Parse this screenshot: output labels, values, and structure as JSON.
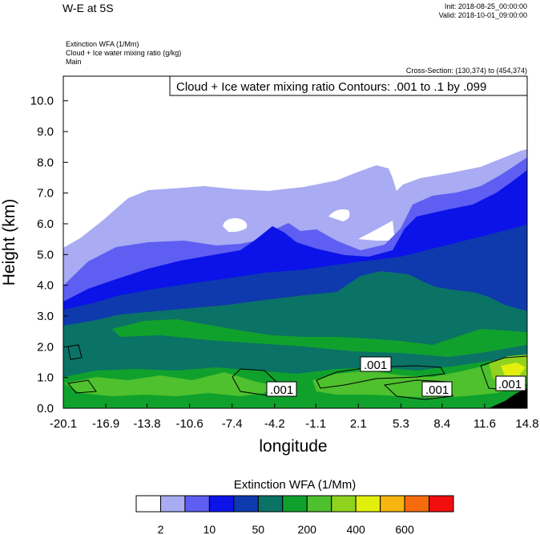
{
  "header": {
    "title": "W-E at 5S",
    "init": "Init: 2018-08-25_00:00:00",
    "valid": "Valid: 2018-10-01_09:00:00",
    "field1": "Extinction WFA   (1/Mm)",
    "field2": "Cloud + Ice water mixing ratio   (g/kg)",
    "field3": "Main",
    "cross_section": "Cross-Section: (130,374) to (454,374)"
  },
  "contour_info": "Cloud + Ice water mixing ratio Contours: .001 to .1 by .099",
  "contour_labels": [
    ".001",
    ".001",
    ".001",
    ".001"
  ],
  "colorbar": {
    "title": "Extinction WFA  (1/Mm)",
    "colors": [
      "#ffffff",
      "#a9abf3",
      "#5e5ef2",
      "#0b13e8",
      "#0e3aad",
      "#0b7266",
      "#10a12c",
      "#4fc02e",
      "#8fd31f",
      "#e2ef0c",
      "#f7b50f",
      "#f76b0f",
      "#f20e0e"
    ],
    "labels": [
      "2",
      "10",
      "50",
      "200",
      "400",
      "600"
    ]
  },
  "chart_data": {
    "type": "heatmap",
    "title": "W-E at 5S",
    "xlabel": "longitude",
    "ylabel": "Height (km)",
    "xlim": [
      -20.1,
      14.8
    ],
    "ylim": [
      0.0,
      10.8
    ],
    "x_ticks": [
      "-20.1",
      "-16.9",
      "-13.8",
      "-10.6",
      "-7.4",
      "-4.2",
      "-1.1",
      "2.1",
      "5.3",
      "8.4",
      "11.6",
      "14.8"
    ],
    "y_ticks": [
      "0.0",
      "1.0",
      "2.0",
      "3.0",
      "4.0",
      "5.0",
      "6.0",
      "7.0",
      "8.0",
      "9.0",
      "10.0"
    ],
    "grid": false
  }
}
